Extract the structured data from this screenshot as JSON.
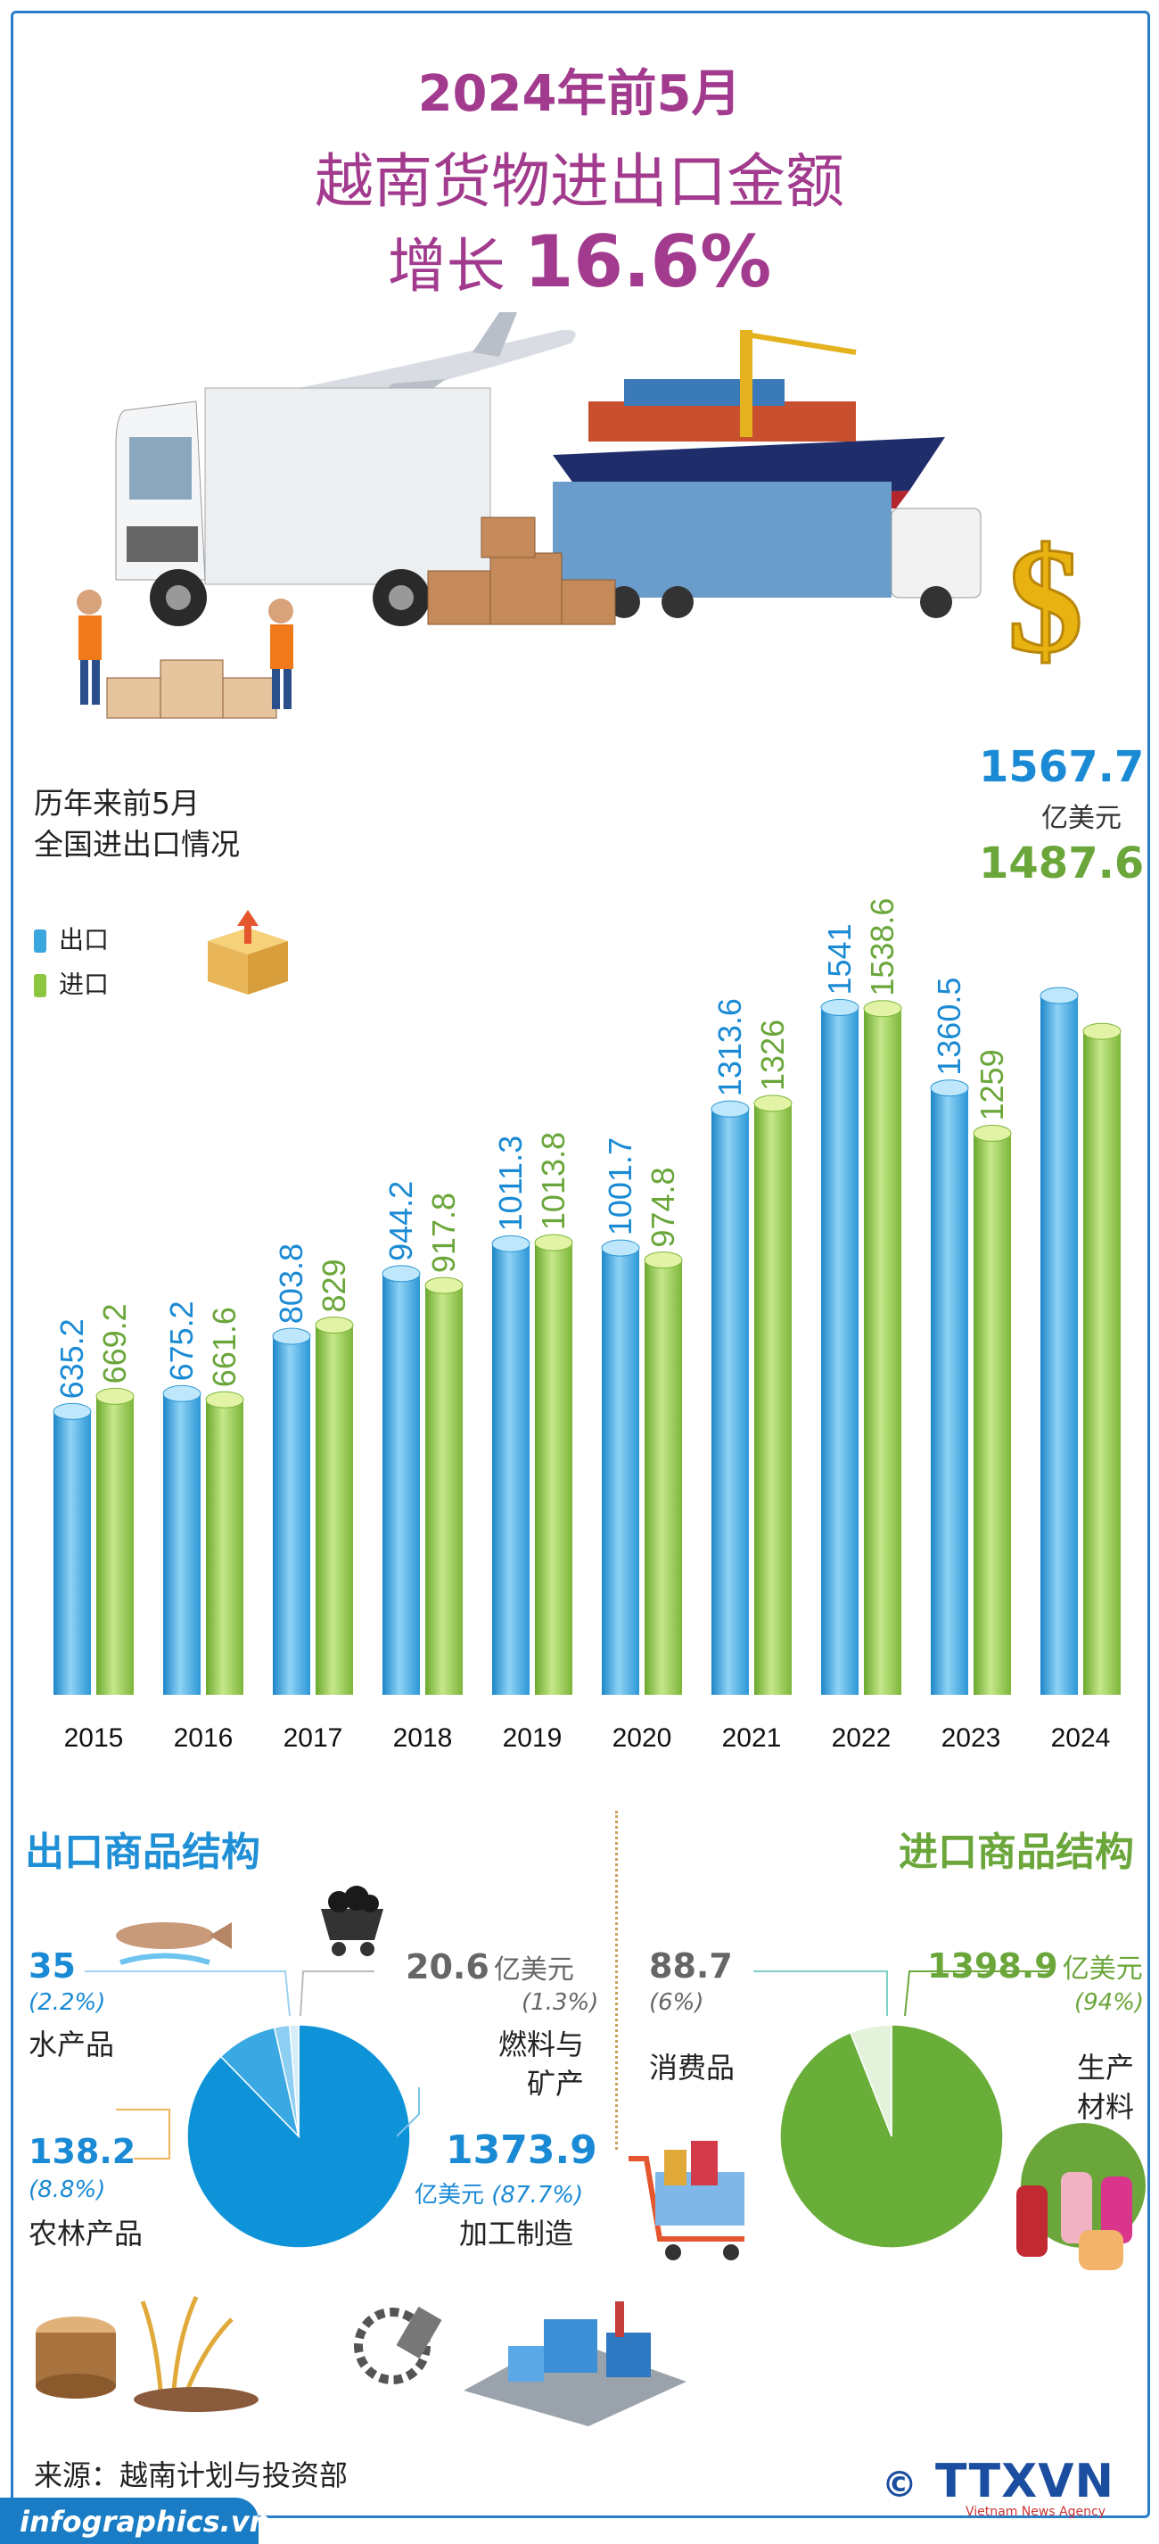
{
  "title": {
    "line1": "2024年前5月",
    "line2": "越南货物进出口金额",
    "line3_prefix": "增长",
    "line3_value": "16.6%"
  },
  "legend": {
    "title_line1": "历年来前5月",
    "title_line2": "全国进出口情况",
    "export_label": "出口",
    "import_label": "进口",
    "export_color": "#3aa6de",
    "import_color": "#8dc63f"
  },
  "unit_2024": "亿美元",
  "chart_data": {
    "type": "bar",
    "categories": [
      "2015",
      "2016",
      "2017",
      "2018",
      "2019",
      "2020",
      "2021",
      "2022",
      "2023",
      "2024"
    ],
    "series": [
      {
        "name": "出口",
        "values": [
          635.2,
          675.2,
          803.8,
          944.2,
          1011.3,
          1001.7,
          1313.6,
          1541,
          1360.5,
          1567.7
        ]
      },
      {
        "name": "进口",
        "values": [
          669.2,
          661.6,
          829,
          917.8,
          1013.8,
          974.8,
          1326,
          1538.6,
          1259,
          1487.6
        ]
      }
    ],
    "value_labels": {
      "export": [
        "635.2",
        "675.2",
        "803.8",
        "944.2",
        "1011.3",
        "1001.7",
        "1313.6",
        "1541",
        "1360.5",
        "1567.7"
      ],
      "import": [
        "669.2",
        "661.6",
        "829",
        "917.8",
        "1013.8",
        "974.8",
        "1326",
        "1538.6",
        "1259",
        "1487.6"
      ]
    }
  },
  "export_structure": {
    "title": "出口商品结构",
    "items": [
      {
        "value": "35",
        "pct": "(2.2%)",
        "label": "水产品",
        "share": 2.2
      },
      {
        "value": "20.6",
        "unit": "亿美元",
        "pct": "(1.3%)",
        "label_line1": "燃料与",
        "label_line2": "矿产",
        "share": 1.3
      },
      {
        "value": "138.2",
        "pct": "(8.8%)",
        "label": "农林产品",
        "share": 8.8
      },
      {
        "value": "1373.9",
        "unit": "亿美元",
        "pct": "(87.7%)",
        "label": "加工制造",
        "share": 87.7
      }
    ]
  },
  "import_structure": {
    "title": "进口商品结构",
    "items": [
      {
        "value": "88.7",
        "pct": "(6%)",
        "label": "消费品",
        "share": 6
      },
      {
        "value": "1398.9",
        "unit": "亿美元",
        "pct": "(94%)",
        "label_line1": "生产",
        "label_line2": "材料",
        "share": 94
      }
    ]
  },
  "source": "来源：越南计划与投资部",
  "footer": "infographics.vn",
  "logo": "TTXVN",
  "logo_sub": "Vietnam News Agency"
}
